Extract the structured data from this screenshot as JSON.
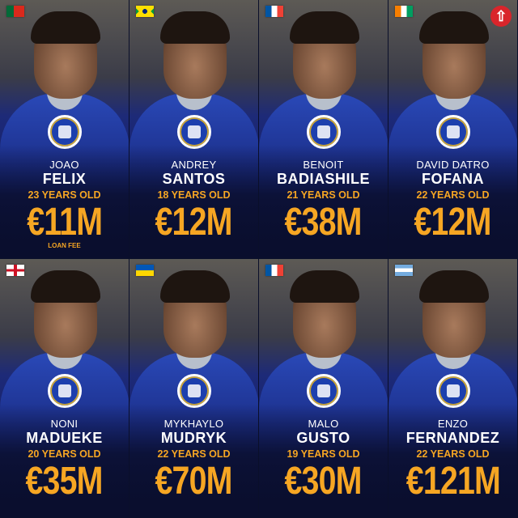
{
  "players": [
    {
      "first": "JOAO",
      "last": "FELIX",
      "age": "23 YEARS OLD",
      "price": "€11M",
      "note": "LOAN FEE",
      "flag": "portugal"
    },
    {
      "first": "ANDREY",
      "last": "SANTOS",
      "age": "18 YEARS OLD",
      "price": "€12M",
      "flag": "brazil"
    },
    {
      "first": "BENOIT",
      "last": "BADIASHILE",
      "age": "21 YEARS OLD",
      "price": "€38M",
      "flag": "france"
    },
    {
      "first": "DAVID DATRO",
      "last": "FOFANA",
      "age": "22 YEARS OLD",
      "price": "€12M",
      "flag": "ivory-coast",
      "badge": "arrow-up-icon"
    },
    {
      "first": "NONI",
      "last": "MADUEKE",
      "age": "20 YEARS OLD",
      "price": "€35M",
      "flag": "england"
    },
    {
      "first": "MYKHAYLO",
      "last": "MUDRYK",
      "age": "22 YEARS OLD",
      "price": "€70M",
      "flag": "ukraine"
    },
    {
      "first": "MALO",
      "last": "GUSTO",
      "age": "19 YEARS OLD",
      "price": "€30M",
      "flag": "france"
    },
    {
      "first": "ENZO",
      "last": "FERNANDEZ",
      "age": "22 YEARS OLD",
      "price": "€121M",
      "flag": "argentina"
    }
  ],
  "colors": {
    "accent": "#f6a623",
    "kit": "#1a2c85",
    "badge": "#d9252b"
  }
}
